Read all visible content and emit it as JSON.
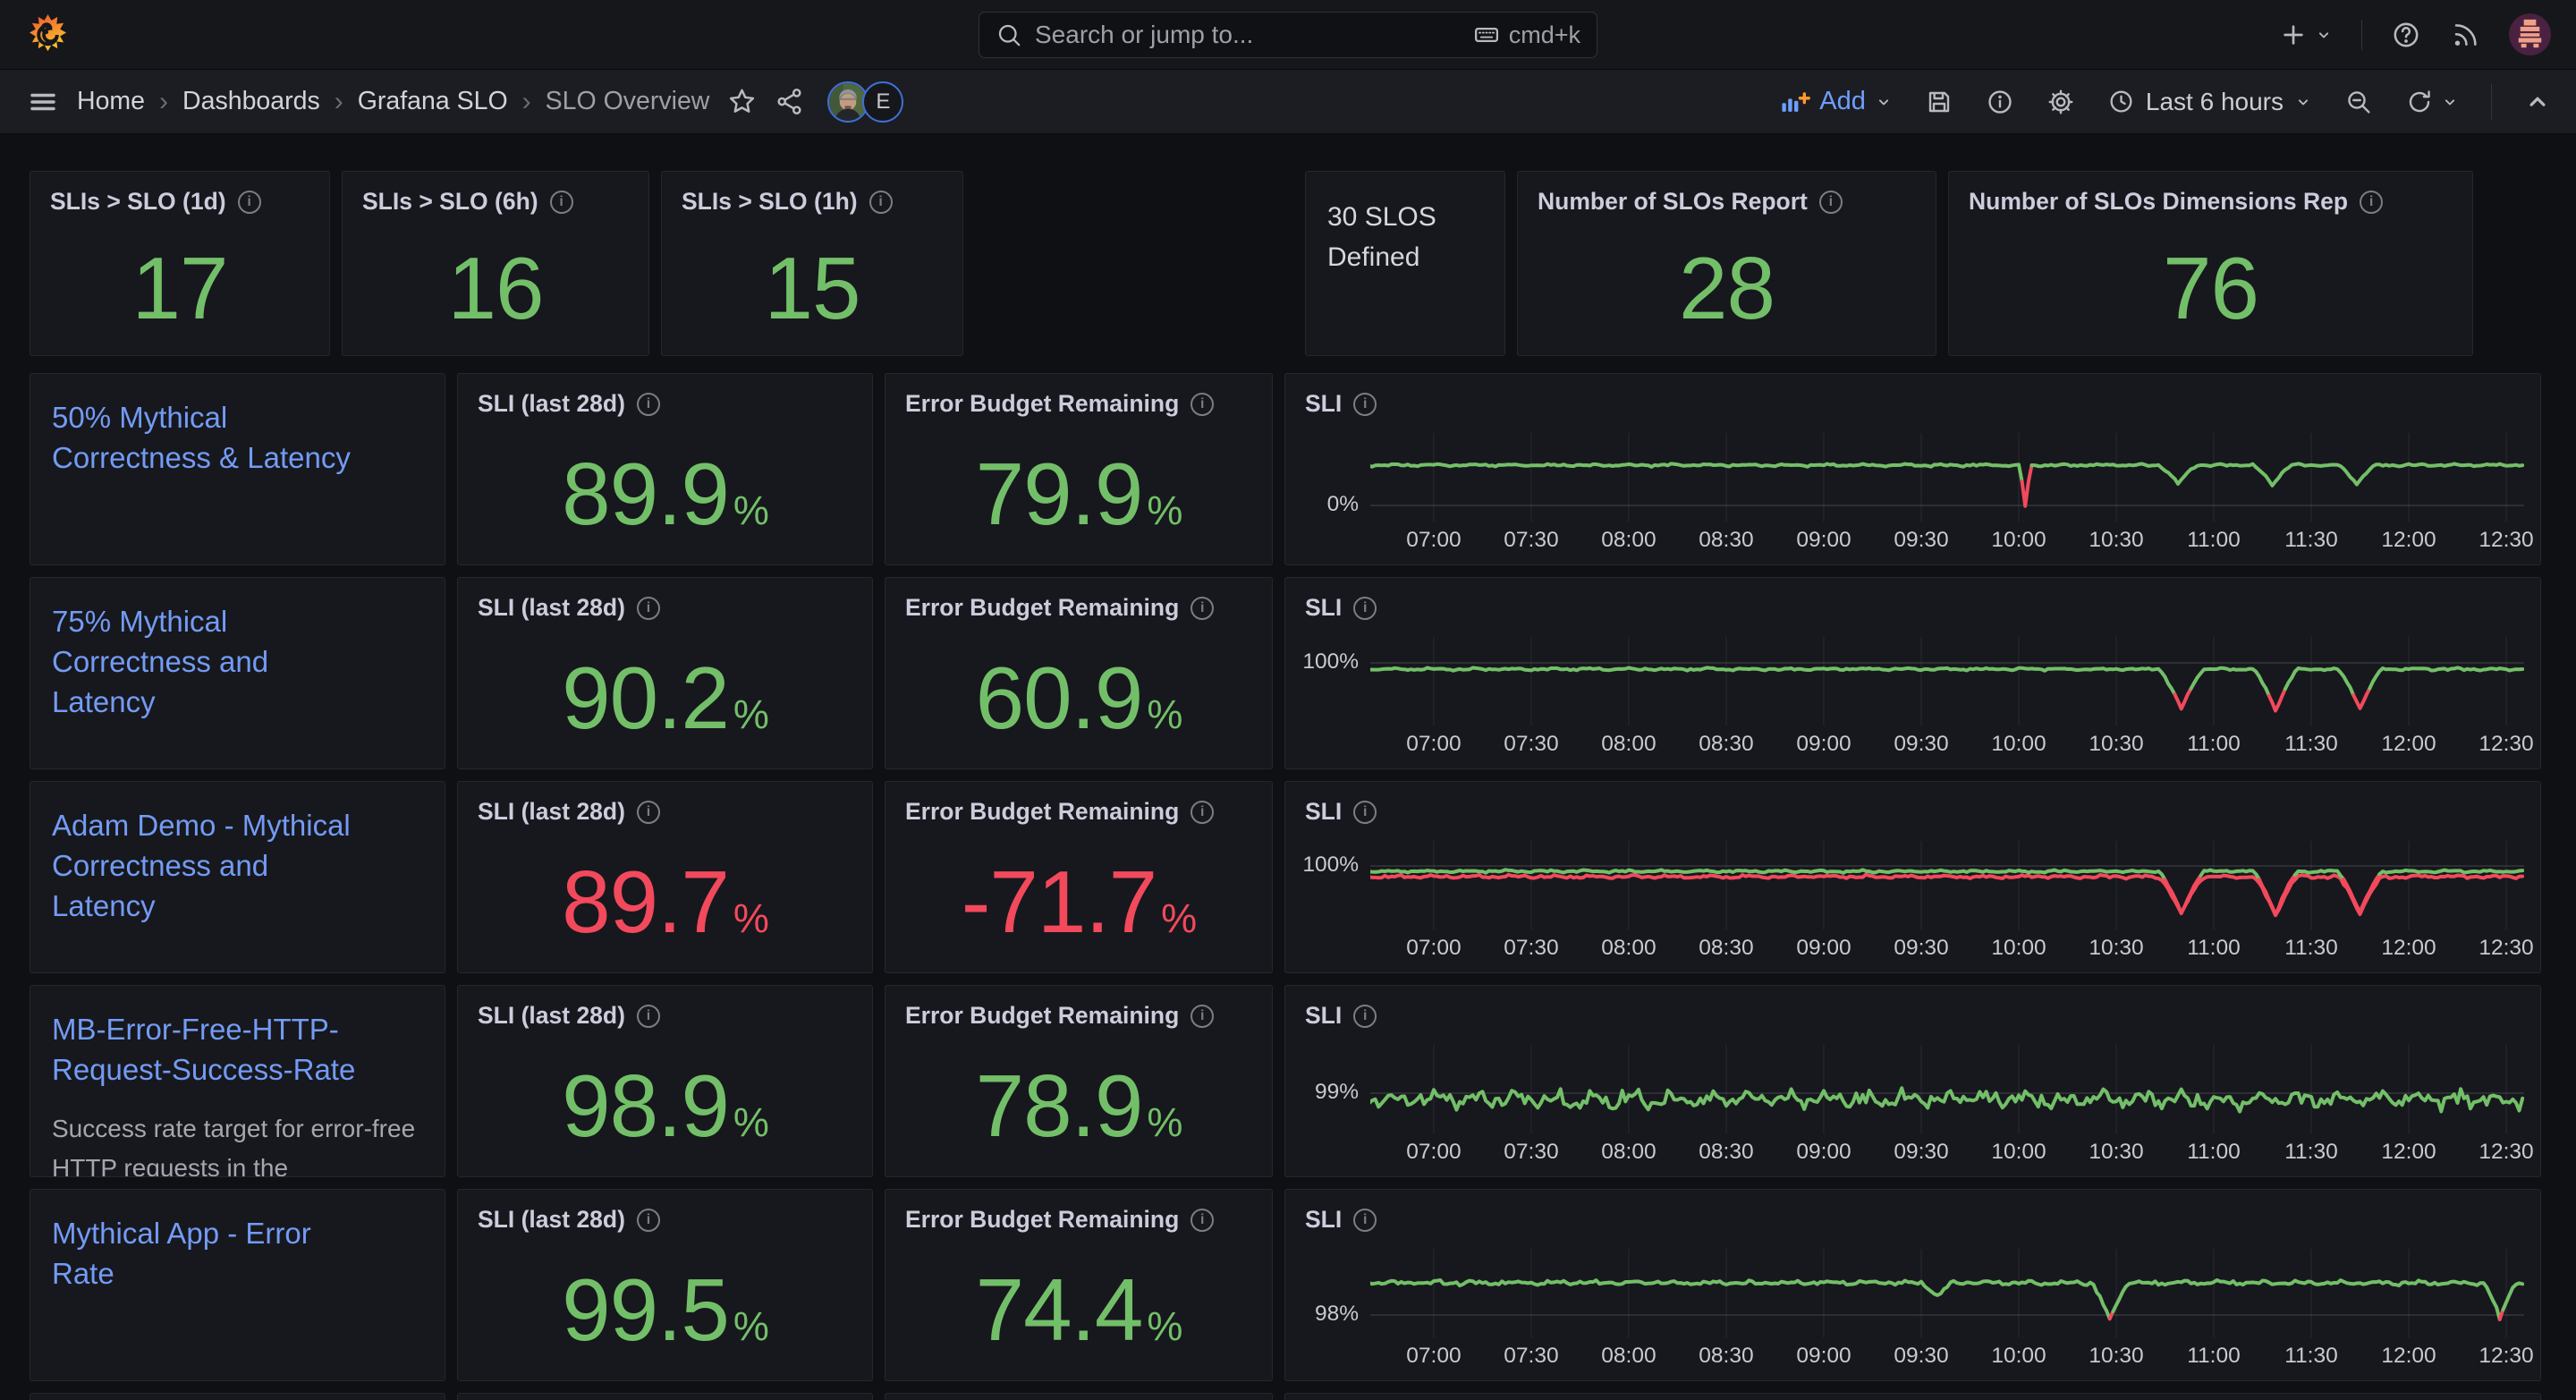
{
  "topnav": {
    "search_placeholder": "Search or jump to...",
    "search_shortcut": "cmd+k"
  },
  "breadcrumbs": {
    "items": [
      "Home",
      "Dashboards",
      "Grafana SLO"
    ],
    "current": "SLO Overview"
  },
  "presence": {
    "second_avatar_letter": "E"
  },
  "toolbar": {
    "add_label": "Add",
    "time_range": "Last 6 hours"
  },
  "stats": [
    {
      "title": "SLIs > SLO (1d)",
      "value": "17"
    },
    {
      "title": "SLIs > SLO (6h)",
      "value": "16"
    },
    {
      "title": "SLIs > SLO (1h)",
      "value": "15"
    }
  ],
  "summary": {
    "defined_line1": "30 SLOS",
    "defined_line2": "Defined",
    "report_title": "Number of SLOs Report",
    "report_value": "28",
    "dimensions_title": "Number of SLOs Dimensions Rep",
    "dimensions_value": "76"
  },
  "columns": {
    "sli_title": "SLI (last 28d)",
    "ebr_title": "Error Budget Remaining",
    "chart_title": "SLI"
  },
  "percent": "%",
  "colors": {
    "green": "#73BF69",
    "red": "#F2495C",
    "link": "#739BF5",
    "orange": "#FF9830"
  },
  "slo_rows": [
    {
      "name": "50% Mythical Correctness & Latency",
      "description": "",
      "sli": "89.9",
      "sli_color": "green",
      "ebr": "79.9",
      "ebr_color": "green"
    },
    {
      "name": "75% Mythical Correctness and Latency",
      "description": "",
      "sli": "90.2",
      "sli_color": "green",
      "ebr": "60.9",
      "ebr_color": "green"
    },
    {
      "name": "Adam Demo - Mythical Correctness and Latency",
      "description": "",
      "sli": "89.7",
      "sli_color": "red",
      "ebr": "-71.7",
      "ebr_color": "red"
    },
    {
      "name": "MB-Error-Free-HTTP-Request-Success-Rate",
      "description": "Success rate target for error-free HTTP requests in the",
      "sli": "98.9",
      "sli_color": "green",
      "ebr": "78.9",
      "ebr_color": "green"
    },
    {
      "name": "Mythical App - Error Rate",
      "description": "",
      "sli": "99.5",
      "sli_color": "green",
      "ebr": "74.4",
      "ebr_color": "green"
    }
  ],
  "chart_data": [
    {
      "panel": "50% Mythical Correctness & Latency - SLI",
      "type": "line",
      "x_ticks": [
        "07:00",
        "07:30",
        "08:00",
        "08:30",
        "09:00",
        "09:30",
        "10:00",
        "10:30",
        "11:00",
        "11:30",
        "12:00",
        "12:30"
      ],
      "y_axis_label": "0%",
      "series": [
        {
          "name": "SLI",
          "approx_baseline_pct": 100,
          "events": [
            {
              "time": "10:02",
              "drop_to_pct": 0,
              "color": "red"
            },
            {
              "time": "10:49",
              "drop_to_pct": 55
            },
            {
              "time": "11:18",
              "drop_to_pct": 55
            },
            {
              "time": "11:44",
              "drop_to_pct": 55
            }
          ]
        }
      ],
      "render": {
        "grid_y": 85,
        "layers": [
          {
            "color": "green",
            "base": 40,
            "amp": 1.8,
            "seed": 11,
            "red_below": 76,
            "dips": [
              {
                "t": 602,
                "depth": 46,
                "half": 2,
                "color": "red",
                "red_from": 6
              },
              {
                "t": 649,
                "depth": 21,
                "half": 6
              },
              {
                "t": 678,
                "depth": 22,
                "half": 6
              },
              {
                "t": 704,
                "depth": 21,
                "half": 6
              }
            ]
          }
        ]
      }
    },
    {
      "panel": "75% Mythical Correctness and Latency - SLI",
      "type": "line",
      "x_ticks": [
        "07:00",
        "07:30",
        "08:00",
        "08:30",
        "09:00",
        "09:30",
        "10:00",
        "10:30",
        "11:00",
        "11:30",
        "12:00",
        "12:30"
      ],
      "y_axis_label": "100%",
      "series": [
        {
          "name": "SLI",
          "approx_baseline_pct": 99.8,
          "events": [
            {
              "time": "10:50",
              "drop_to_pct": 97,
              "tip_color": "red"
            },
            {
              "time": "11:19",
              "drop_to_pct": 97,
              "tip_color": "red"
            },
            {
              "time": "11:45",
              "drop_to_pct": 97,
              "tip_color": "red"
            }
          ]
        }
      ],
      "render": {
        "grid_y": 33,
        "layers": [
          {
            "color": "green",
            "base": 40,
            "amp": 1.8,
            "seed": 22,
            "red_below": 63,
            "dips": [
              {
                "t": 650,
                "depth": 45,
                "half": 7
              },
              {
                "t": 679,
                "depth": 46,
                "half": 7
              },
              {
                "t": 705,
                "depth": 44,
                "half": 7
              }
            ]
          }
        ]
      }
    },
    {
      "panel": "Adam Demo - Mythical Correctness and Latency - SLI",
      "type": "line",
      "x_ticks": [
        "07:00",
        "07:30",
        "08:00",
        "08:30",
        "09:00",
        "09:30",
        "10:00",
        "10:30",
        "11:00",
        "11:30",
        "12:00",
        "12:30"
      ],
      "y_axis_label": "100%",
      "series": [
        {
          "name": "SLI",
          "approx_baseline_pct": 99.8,
          "events": [
            {
              "time": "10:50",
              "drop_to_pct": 97,
              "color": "red"
            },
            {
              "time": "11:19",
              "drop_to_pct": 97,
              "color": "red"
            },
            {
              "time": "11:45",
              "drop_to_pct": 97,
              "color": "red"
            }
          ]
        },
        {
          "name": "below-target",
          "approx_baseline_pct": 99.5,
          "color": "red"
        }
      ],
      "render": {
        "grid_y": 32,
        "layers": [
          {
            "color": "red",
            "base": 44,
            "amp": 2.4,
            "seed": 33,
            "red_below": 999,
            "dips": [
              {
                "t": 650,
                "depth": 42,
                "half": 7
              },
              {
                "t": 679,
                "depth": 43,
                "half": 7
              },
              {
                "t": 705,
                "depth": 41,
                "half": 7
              }
            ]
          },
          {
            "color": "green",
            "base": 38,
            "amp": 1.8,
            "seed": 34,
            "red_below": 46,
            "dips": [
              {
                "t": 650,
                "depth": 47,
                "half": 7
              },
              {
                "t": 679,
                "depth": 48,
                "half": 7
              },
              {
                "t": 705,
                "depth": 46,
                "half": 7
              }
            ]
          }
        ]
      }
    },
    {
      "panel": "MB-Error-Free-HTTP-Request-Success-Rate - SLI",
      "type": "line",
      "x_ticks": [
        "07:00",
        "07:30",
        "08:00",
        "08:30",
        "09:00",
        "09:30",
        "10:00",
        "10:30",
        "11:00",
        "11:30",
        "12:00",
        "12:30"
      ],
      "y_axis_label": "99%",
      "series": [
        {
          "name": "SLI",
          "approx_baseline_pct": 99,
          "events": [],
          "note": "noisy oscillation roughly 98.9-99.3%"
        }
      ],
      "render": {
        "grid_y": 58,
        "layers": [
          {
            "color": "green",
            "base": 65,
            "amp": 14,
            "seed": 44,
            "red_below": 999,
            "dips": []
          }
        ]
      }
    },
    {
      "panel": "Mythical App - Error Rate - SLI",
      "type": "line",
      "x_ticks": [
        "07:00",
        "07:30",
        "08:00",
        "08:30",
        "09:00",
        "09:30",
        "10:00",
        "10:30",
        "11:00",
        "11:30",
        "12:00",
        "12:30"
      ],
      "y_axis_label": "98%",
      "series": [
        {
          "name": "SLI",
          "approx_baseline_pct": 98.6,
          "events": [
            {
              "time": "09:35",
              "drop_to_pct": 98.3
            },
            {
              "time": "10:28",
              "drop_to_pct": 97.9,
              "tip_color": "red"
            },
            {
              "time": "12:28",
              "drop_to_pct": 97.9,
              "tip_color": "red"
            }
          ]
        }
      ],
      "render": {
        "grid_y": 78,
        "layers": [
          {
            "color": "green",
            "base": 42,
            "amp": 3.4,
            "seed": 55,
            "red_below": 79,
            "dips": [
              {
                "t": 575,
                "depth": 16,
                "half": 5
              },
              {
                "t": 628,
                "depth": 41,
                "half": 6
              },
              {
                "t": 748,
                "depth": 41,
                "half": 5
              }
            ]
          }
        ]
      }
    }
  ]
}
